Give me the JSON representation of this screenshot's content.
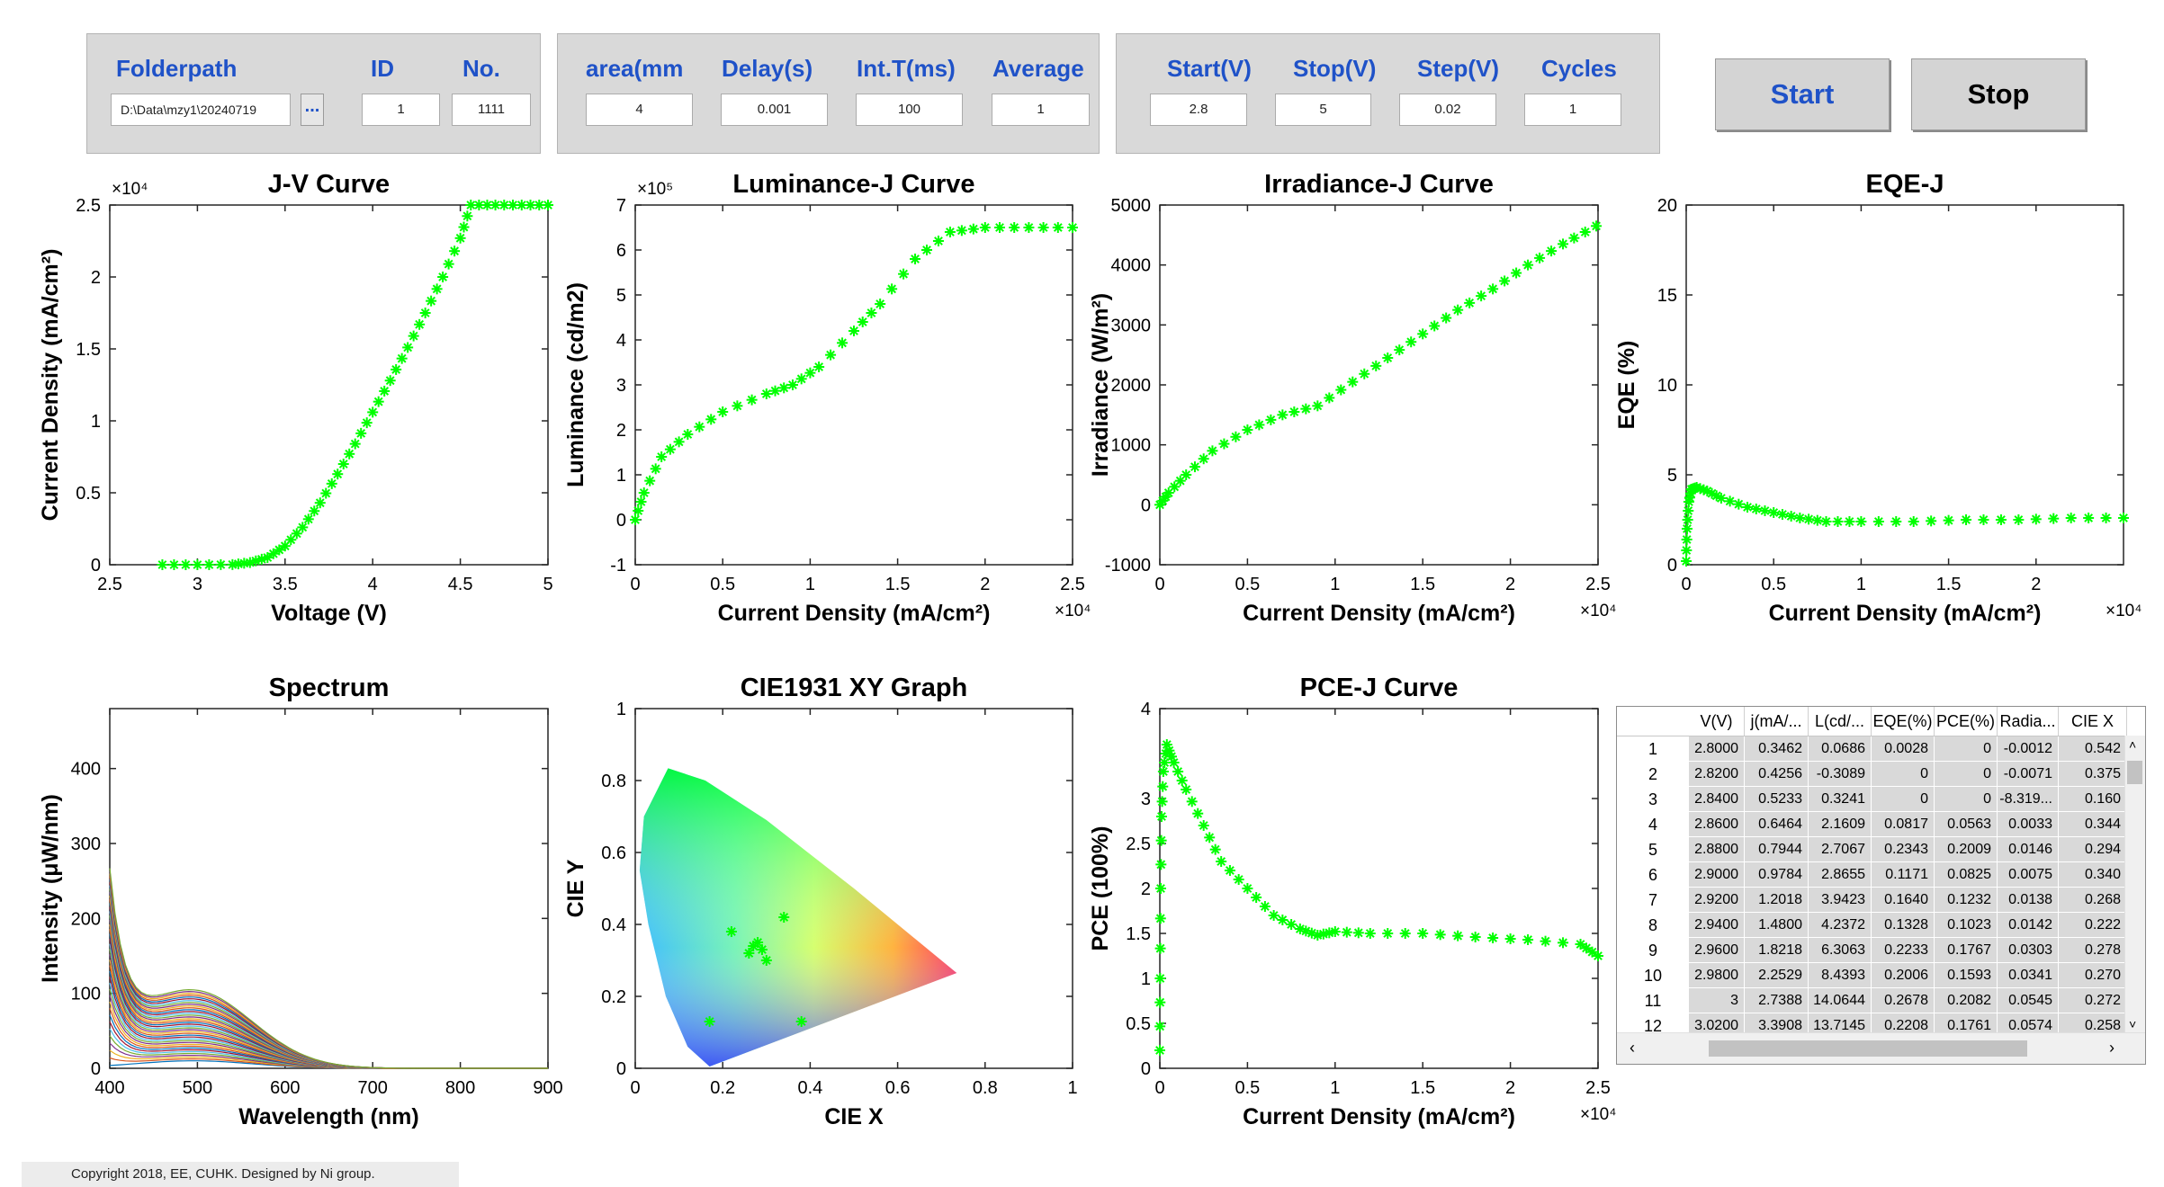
{
  "panel1": {
    "labels": [
      "Folderpath",
      "ID",
      "No."
    ],
    "folderpath": "D:\\Data\\mzy1\\20240719",
    "browse_label": "...",
    "id": "1",
    "no": "1111"
  },
  "panel2": {
    "labels": [
      "area(mm",
      "Delay(s)",
      "Int.T(ms)",
      "Average"
    ],
    "values": [
      "4",
      "0.001",
      "100",
      "1"
    ]
  },
  "panel3": {
    "labels": [
      "Start(V)",
      "Stop(V)",
      "Step(V)",
      "Cycles"
    ],
    "values": [
      "2.8",
      "5",
      "0.02",
      "1"
    ]
  },
  "buttons": {
    "start": "Start",
    "stop": "Stop"
  },
  "colors": {
    "marker": "#00ff00",
    "label_blue": "#1f52c8",
    "panel_bg": "#d9d9d9"
  },
  "chart_data": [
    {
      "type": "scatter",
      "title": "J-V Curve",
      "xlabel": "Voltage (V)",
      "ylabel": "Current Density (mA/cm²)",
      "xlim": [
        2.5,
        5
      ],
      "ylim": [
        0,
        25000
      ],
      "exponent": "×10⁴",
      "xticks": [
        "2.5",
        "3",
        "3.5",
        "4",
        "4.5",
        "5"
      ],
      "yticks": [
        "0",
        "0.5",
        "1",
        "1.5",
        "2",
        "2.5"
      ],
      "x": [
        2.8,
        3.0,
        3.2,
        3.3,
        3.4,
        3.5,
        3.6,
        3.7,
        3.8,
        3.9,
        4.0,
        4.1,
        4.2,
        4.3,
        4.4,
        4.5,
        4.56,
        4.7,
        4.85,
        5.0
      ],
      "y": [
        0,
        0,
        10,
        150,
        500,
        1300,
        2600,
        4300,
        6300,
        8400,
        10600,
        12800,
        15100,
        17500,
        20000,
        22700,
        25000,
        25000,
        25000,
        25000
      ]
    },
    {
      "type": "scatter",
      "title": "Luminance-J Curve",
      "xlabel": "Current Density (mA/cm²)",
      "ylabel": "Luminance (cd/m2)",
      "xlim": [
        0,
        25000
      ],
      "ylim": [
        -100000,
        700000
      ],
      "exponent_y": "×10⁵",
      "exponent_x": "×10⁴",
      "xticks": [
        "0",
        "0.5",
        "1",
        "1.5",
        "2",
        "2.5"
      ],
      "yticks": [
        "-1",
        "0",
        "1",
        "2",
        "3",
        "4",
        "5",
        "6",
        "7"
      ],
      "x": [
        0,
        500,
        1500,
        3000,
        5000,
        7500,
        9000,
        10500,
        12500,
        14000,
        16000,
        18000,
        20000,
        22500,
        25000
      ],
      "y": [
        0,
        60000,
        140000,
        190000,
        240000,
        280000,
        300000,
        340000,
        420000,
        480000,
        580000,
        640000,
        650000,
        650000,
        650000
      ]
    },
    {
      "type": "scatter",
      "title": "Irradiance-J Curve",
      "xlabel": "Current Density (mA/cm²)",
      "ylabel": "Irradiance (W/m²)",
      "xlim": [
        0,
        25000
      ],
      "ylim": [
        -1000,
        5000
      ],
      "exponent_x": "×10⁴",
      "xticks": [
        "0",
        "0.5",
        "1",
        "1.5",
        "2",
        "2.5"
      ],
      "yticks": [
        "-1000",
        "0",
        "1000",
        "2000",
        "3000",
        "4000",
        "5000"
      ],
      "x": [
        0,
        500,
        1500,
        3000,
        5000,
        7000,
        9000,
        11000,
        13000,
        15000,
        17000,
        19000,
        21000,
        23000,
        24900
      ],
      "y": [
        0,
        200,
        500,
        900,
        1250,
        1500,
        1650,
        2050,
        2450,
        2850,
        3250,
        3600,
        4000,
        4350,
        4650
      ]
    },
    {
      "type": "scatter",
      "title": "EQE-J",
      "xlabel": "Current Density (mA/cm²)",
      "ylabel": "EQE (%)",
      "xlim": [
        0,
        25000
      ],
      "ylim": [
        0,
        20
      ],
      "exponent_x": "×10⁴",
      "xticks": [
        "0",
        "0.5",
        "1",
        "1.5",
        "2"
      ],
      "yticks": [
        "0",
        "5",
        "10",
        "15",
        "20"
      ],
      "x": [
        0,
        50,
        150,
        300,
        600,
        1200,
        2000,
        3500,
        5000,
        6500,
        8000,
        10000,
        13000,
        16000,
        19000,
        22000,
        25000
      ],
      "y": [
        0.2,
        2.0,
        3.5,
        4.2,
        4.3,
        4.1,
        3.7,
        3.2,
        2.9,
        2.6,
        2.4,
        2.4,
        2.4,
        2.5,
        2.5,
        2.6,
        2.6
      ]
    },
    {
      "type": "line",
      "title": "Spectrum",
      "xlabel": "Wavelength (nm)",
      "ylabel": "Intensity (μW/nm)",
      "xlim": [
        400,
        900
      ],
      "ylim": [
        0,
        480
      ],
      "xticks": [
        "400",
        "500",
        "600",
        "700",
        "800",
        "900"
      ],
      "yticks": [
        "0",
        "100",
        "200",
        "300",
        "400"
      ]
    },
    {
      "type": "scatter",
      "title": "CIE1931 XY Graph",
      "xlabel": "CIE X",
      "ylabel": "CIE Y",
      "xlim": [
        0,
        1
      ],
      "ylim": [
        0,
        1
      ],
      "xticks": [
        "0",
        "0.2",
        "0.4",
        "0.6",
        "0.8",
        "1"
      ],
      "yticks": [
        "0",
        "0.2",
        "0.4",
        "0.6",
        "0.8",
        "1"
      ],
      "x": [
        0.17,
        0.22,
        0.26,
        0.27,
        0.28,
        0.29,
        0.3,
        0.34,
        0.38
      ],
      "y": [
        0.13,
        0.38,
        0.32,
        0.34,
        0.35,
        0.33,
        0.3,
        0.42,
        0.13
      ]
    },
    {
      "type": "scatter",
      "title": "PCE-J Curve",
      "xlabel": "Current Density (mA/cm²)",
      "ylabel": "PCE (100%)",
      "xlim": [
        0,
        25000
      ],
      "ylim": [
        0,
        4
      ],
      "exponent_x": "×10⁴",
      "xticks": [
        "0",
        "0.5",
        "1",
        "1.5",
        "2",
        "2.5"
      ],
      "yticks": [
        "0",
        "0.5",
        "1",
        "1.5",
        "2",
        "2.5",
        "3",
        "4"
      ],
      "ytick_values": [
        0,
        0.5,
        1,
        1.5,
        2,
        2.5,
        3,
        4
      ],
      "x": [
        0,
        20,
        50,
        100,
        200,
        400,
        800,
        1500,
        2500,
        3500,
        5000,
        6500,
        8000,
        9000,
        10000,
        12000,
        15000,
        18000,
        21000,
        24000,
        25000
      ],
      "y": [
        0.2,
        1.0,
        2.0,
        2.8,
        3.3,
        3.6,
        3.4,
        3.1,
        2.7,
        2.3,
        2.0,
        1.7,
        1.55,
        1.48,
        1.52,
        1.5,
        1.5,
        1.46,
        1.43,
        1.38,
        1.25
      ]
    }
  ],
  "table": {
    "columns": [
      "V(V)",
      "j(mA/...",
      "L(cd/...",
      "EQE(%)",
      "PCE(%)",
      "Radia...",
      "CIE X"
    ],
    "rows": [
      [
        "1",
        "2.8000",
        "0.3462",
        "0.0686",
        "0.0028",
        "0",
        "-0.0012",
        "0.542"
      ],
      [
        "2",
        "2.8200",
        "0.4256",
        "-0.3089",
        "0",
        "0",
        "-0.0071",
        "0.375"
      ],
      [
        "3",
        "2.8400",
        "0.5233",
        "0.3241",
        "0",
        "0",
        "-8.319...",
        "0.160"
      ],
      [
        "4",
        "2.8600",
        "0.6464",
        "2.1609",
        "0.0817",
        "0.0563",
        "0.0033",
        "0.344"
      ],
      [
        "5",
        "2.8800",
        "0.7944",
        "2.7067",
        "0.2343",
        "0.2009",
        "0.0146",
        "0.294"
      ],
      [
        "6",
        "2.9000",
        "0.9784",
        "2.8655",
        "0.1171",
        "0.0825",
        "0.0075",
        "0.340"
      ],
      [
        "7",
        "2.9200",
        "1.2018",
        "3.9423",
        "0.1640",
        "0.1232",
        "0.0138",
        "0.268"
      ],
      [
        "8",
        "2.9400",
        "1.4800",
        "4.2372",
        "0.1328",
        "0.1023",
        "0.0142",
        "0.222"
      ],
      [
        "9",
        "2.9600",
        "1.8218",
        "6.3063",
        "0.2233",
        "0.1767",
        "0.0303",
        "0.278"
      ],
      [
        "10",
        "2.9800",
        "2.2529",
        "8.4393",
        "0.2006",
        "0.1593",
        "0.0341",
        "0.270"
      ],
      [
        "11",
        "3",
        "2.7388",
        "14.0644",
        "0.2678",
        "0.2082",
        "0.0545",
        "0.272"
      ],
      [
        "12",
        "3.0200",
        "3.3908",
        "13.7145",
        "0.2208",
        "0.1761",
        "0.0574",
        "0.258"
      ]
    ]
  },
  "copyright": "Copyright 2018, EE, CUHK. Designed by Ni group."
}
